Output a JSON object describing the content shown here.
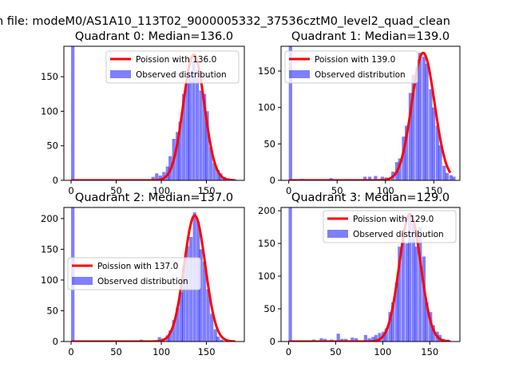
{
  "figure": {
    "suptitle": "n file: modeM0/AS1A10_113T02_9000005332_37536cztM0_level2_quad_clean"
  },
  "chart_data": [
    {
      "type": "bar",
      "title": "Quadrant 0: Median=136.0",
      "median": 136.0,
      "xlim": [
        -8,
        192
      ],
      "ylim": [
        0,
        194
      ],
      "xticks": [
        0,
        50,
        100,
        150
      ],
      "yticks": [
        0,
        50,
        100,
        150
      ],
      "legend_position": "top-right",
      "series": [
        {
          "name": "Poission with 136.0",
          "kind": "line",
          "color": "#ff0000",
          "mean": 136.0,
          "amplitude": 182
        },
        {
          "name": "Observed distribution",
          "kind": "histogram",
          "color": "#8080ff",
          "bin_width": 3.75,
          "bins": [
            {
              "x": 0,
              "y": 200
            },
            {
              "x": 89,
              "y": 5
            },
            {
              "x": 93,
              "y": 10
            },
            {
              "x": 97,
              "y": 7
            },
            {
              "x": 101,
              "y": 12
            },
            {
              "x": 105,
              "y": 20
            },
            {
              "x": 108,
              "y": 35
            },
            {
              "x": 112,
              "y": 60
            },
            {
              "x": 116,
              "y": 70
            },
            {
              "x": 119,
              "y": 85
            },
            {
              "x": 123,
              "y": 125
            },
            {
              "x": 127,
              "y": 140
            },
            {
              "x": 130,
              "y": 155
            },
            {
              "x": 134,
              "y": 172
            },
            {
              "x": 138,
              "y": 160
            },
            {
              "x": 142,
              "y": 130
            },
            {
              "x": 146,
              "y": 125
            },
            {
              "x": 149,
              "y": 100
            },
            {
              "x": 153,
              "y": 48
            },
            {
              "x": 157,
              "y": 25
            },
            {
              "x": 161,
              "y": 15
            },
            {
              "x": 164,
              "y": 10
            },
            {
              "x": 168,
              "y": 5
            },
            {
              "x": 172,
              "y": 3
            },
            {
              "x": 176,
              "y": 2
            },
            {
              "x": 180,
              "y": 1
            }
          ]
        }
      ]
    },
    {
      "type": "bar",
      "title": "Quadrant 1: Median=139.0",
      "median": 139.0,
      "xlim": [
        -8,
        177
      ],
      "ylim": [
        0,
        184
      ],
      "xticks": [
        0,
        50,
        100,
        150
      ],
      "yticks": [
        0,
        50,
        100,
        150
      ],
      "legend_position": "top-left",
      "series": [
        {
          "name": "Poission with 139.0",
          "kind": "line",
          "color": "#ff0000",
          "mean": 139.0,
          "amplitude": 175
        },
        {
          "name": "Observed distribution",
          "kind": "histogram",
          "color": "#8080ff",
          "bin_width": 3.5,
          "bins": [
            {
              "x": 0,
              "y": 200
            },
            {
              "x": 12,
              "y": 2
            },
            {
              "x": 42,
              "y": 3
            },
            {
              "x": 77,
              "y": 5
            },
            {
              "x": 82,
              "y": 5
            },
            {
              "x": 88,
              "y": 6
            },
            {
              "x": 95,
              "y": 5
            },
            {
              "x": 99,
              "y": 4
            },
            {
              "x": 106,
              "y": 12
            },
            {
              "x": 110,
              "y": 25
            },
            {
              "x": 113,
              "y": 30
            },
            {
              "x": 117,
              "y": 60
            },
            {
              "x": 120,
              "y": 75
            },
            {
              "x": 124,
              "y": 120
            },
            {
              "x": 127,
              "y": 145
            },
            {
              "x": 131,
              "y": 155
            },
            {
              "x": 134,
              "y": 175
            },
            {
              "x": 138,
              "y": 170
            },
            {
              "x": 141,
              "y": 160
            },
            {
              "x": 145,
              "y": 125
            },
            {
              "x": 148,
              "y": 100
            },
            {
              "x": 152,
              "y": 75
            },
            {
              "x": 155,
              "y": 48
            },
            {
              "x": 159,
              "y": 20
            },
            {
              "x": 162,
              "y": 10
            },
            {
              "x": 166,
              "y": 7
            },
            {
              "x": 169,
              "y": 5
            }
          ]
        }
      ]
    },
    {
      "type": "bar",
      "title": "Quadrant 2: Median=137.0",
      "median": 137.0,
      "xlim": [
        -8,
        192
      ],
      "ylim": [
        0,
        218
      ],
      "xticks": [
        0,
        50,
        100,
        150
      ],
      "yticks": [
        0,
        50,
        100,
        150,
        200
      ],
      "legend_position": "center-left",
      "series": [
        {
          "name": "Poission with 137.0",
          "kind": "line",
          "color": "#ff0000",
          "mean": 137.0,
          "amplitude": 205
        },
        {
          "name": "Observed distribution",
          "kind": "histogram",
          "color": "#8080ff",
          "bin_width": 3.75,
          "bins": [
            {
              "x": 0,
              "y": 230
            },
            {
              "x": 76,
              "y": 3
            },
            {
              "x": 96,
              "y": 7
            },
            {
              "x": 100,
              "y": 5
            },
            {
              "x": 105,
              "y": 10
            },
            {
              "x": 108,
              "y": 18
            },
            {
              "x": 112,
              "y": 35
            },
            {
              "x": 116,
              "y": 55
            },
            {
              "x": 120,
              "y": 80
            },
            {
              "x": 123,
              "y": 125
            },
            {
              "x": 127,
              "y": 155
            },
            {
              "x": 131,
              "y": 170
            },
            {
              "x": 135,
              "y": 210
            },
            {
              "x": 139,
              "y": 195
            },
            {
              "x": 142,
              "y": 150
            },
            {
              "x": 146,
              "y": 130
            },
            {
              "x": 150,
              "y": 85
            },
            {
              "x": 154,
              "y": 45
            },
            {
              "x": 158,
              "y": 20
            },
            {
              "x": 161,
              "y": 8
            },
            {
              "x": 165,
              "y": 3
            }
          ]
        }
      ]
    },
    {
      "type": "bar",
      "title": "Quadrant 3: Median=129.0",
      "median": 129.0,
      "xlim": [
        -8,
        182
      ],
      "ylim": [
        0,
        205
      ],
      "xticks": [
        0,
        50,
        100,
        150
      ],
      "yticks": [
        0,
        50,
        100,
        150,
        200
      ],
      "legend_position": "top-right",
      "series": [
        {
          "name": "Poission with 129.0",
          "kind": "line",
          "color": "#ff0000",
          "mean": 129.0,
          "amplitude": 195
        },
        {
          "name": "Observed distribution",
          "kind": "histogram",
          "color": "#8080ff",
          "bin_width": 3.6,
          "bins": [
            {
              "x": 0,
              "y": 230
            },
            {
              "x": 25,
              "y": 3
            },
            {
              "x": 33,
              "y": 5
            },
            {
              "x": 37,
              "y": 4
            },
            {
              "x": 44,
              "y": 3
            },
            {
              "x": 51,
              "y": 12
            },
            {
              "x": 55,
              "y": 4
            },
            {
              "x": 59,
              "y": 4
            },
            {
              "x": 66,
              "y": 6
            },
            {
              "x": 70,
              "y": 5
            },
            {
              "x": 80,
              "y": 10
            },
            {
              "x": 84,
              "y": 5
            },
            {
              "x": 88,
              "y": 7
            },
            {
              "x": 91,
              "y": 10
            },
            {
              "x": 95,
              "y": 13
            },
            {
              "x": 99,
              "y": 15
            },
            {
              "x": 102,
              "y": 20
            },
            {
              "x": 106,
              "y": 45
            },
            {
              "x": 109,
              "y": 60
            },
            {
              "x": 113,
              "y": 90
            },
            {
              "x": 116,
              "y": 145
            },
            {
              "x": 120,
              "y": 160
            },
            {
              "x": 124,
              "y": 150
            },
            {
              "x": 127,
              "y": 195
            },
            {
              "x": 131,
              "y": 180
            },
            {
              "x": 134,
              "y": 145
            },
            {
              "x": 138,
              "y": 175
            },
            {
              "x": 142,
              "y": 130
            },
            {
              "x": 145,
              "y": 60
            },
            {
              "x": 149,
              "y": 45
            },
            {
              "x": 152,
              "y": 25
            },
            {
              "x": 156,
              "y": 15
            },
            {
              "x": 159,
              "y": 10
            },
            {
              "x": 163,
              "y": 4
            },
            {
              "x": 167,
              "y": 3
            }
          ]
        }
      ]
    }
  ]
}
